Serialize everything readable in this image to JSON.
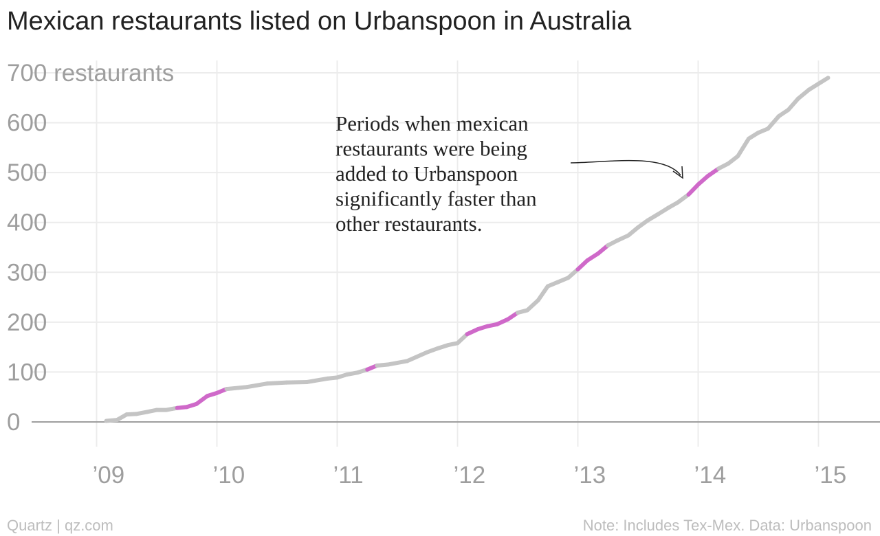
{
  "title": "Mexican restaurants listed on Urbanspoon in Australia",
  "footer": {
    "source_left": "Quartz | qz.com",
    "source_right": "Note: Includes Tex-Mex. Data: Urbanspoon"
  },
  "colors": {
    "line_normal": "#c4c4c4",
    "line_highlight": "#cf69c9",
    "grid": "#ececec",
    "baseline": "#9e9e9e",
    "text": "#222222",
    "tick": "#9e9e9e"
  },
  "chart_data": {
    "type": "line",
    "title": "Mexican restaurants listed on Urbanspoon in Australia",
    "xlabel": "",
    "ylabel": "",
    "y_unit_label": "700 restaurants",
    "xlim": [
      2008.5,
      2015.4
    ],
    "ylim": [
      0,
      700
    ],
    "grid": true,
    "x_ticks": [
      {
        "value": 2009,
        "label": "’09"
      },
      {
        "value": 2010,
        "label": "’10"
      },
      {
        "value": 2011,
        "label": "’11"
      },
      {
        "value": 2012,
        "label": "’12"
      },
      {
        "value": 2013,
        "label": "’13"
      },
      {
        "value": 2014,
        "label": "’14"
      },
      {
        "value": 2015,
        "label": "’15"
      }
    ],
    "y_ticks": [
      {
        "value": 0,
        "label": "0"
      },
      {
        "value": 100,
        "label": "100"
      },
      {
        "value": 200,
        "label": "200"
      },
      {
        "value": 300,
        "label": "300"
      },
      {
        "value": 400,
        "label": "400"
      },
      {
        "value": 500,
        "label": "500"
      },
      {
        "value": 600,
        "label": "600"
      },
      {
        "value": 700,
        "label": "700 restaurants"
      }
    ],
    "series": [
      {
        "points": [
          {
            "x": 2009.08,
            "y": 2,
            "h": false
          },
          {
            "x": 2009.17,
            "y": 4,
            "h": false
          },
          {
            "x": 2009.25,
            "y": 15,
            "h": false
          },
          {
            "x": 2009.33,
            "y": 16,
            "h": false
          },
          {
            "x": 2009.42,
            "y": 20,
            "h": false
          },
          {
            "x": 2009.5,
            "y": 24,
            "h": false
          },
          {
            "x": 2009.58,
            "y": 24,
            "h": false
          },
          {
            "x": 2009.67,
            "y": 28,
            "h": false
          },
          {
            "x": 2009.75,
            "y": 30,
            "h": true
          },
          {
            "x": 2009.83,
            "y": 36,
            "h": true
          },
          {
            "x": 2009.92,
            "y": 52,
            "h": true
          },
          {
            "x": 2010.0,
            "y": 58,
            "h": true
          },
          {
            "x": 2010.08,
            "y": 66,
            "h": true
          },
          {
            "x": 2010.25,
            "y": 70,
            "h": false
          },
          {
            "x": 2010.42,
            "y": 77,
            "h": false
          },
          {
            "x": 2010.58,
            "y": 79,
            "h": false
          },
          {
            "x": 2010.75,
            "y": 80,
            "h": false
          },
          {
            "x": 2010.92,
            "y": 87,
            "h": false
          },
          {
            "x": 2011.0,
            "y": 89,
            "h": false
          },
          {
            "x": 2011.08,
            "y": 95,
            "h": false
          },
          {
            "x": 2011.17,
            "y": 99,
            "h": false
          },
          {
            "x": 2011.25,
            "y": 105,
            "h": false
          },
          {
            "x": 2011.33,
            "y": 113,
            "h": true
          },
          {
            "x": 2011.42,
            "y": 115,
            "h": false
          },
          {
            "x": 2011.58,
            "y": 122,
            "h": false
          },
          {
            "x": 2011.75,
            "y": 140,
            "h": false
          },
          {
            "x": 2011.83,
            "y": 147,
            "h": false
          },
          {
            "x": 2011.92,
            "y": 154,
            "h": false
          },
          {
            "x": 2012.0,
            "y": 158,
            "h": false
          },
          {
            "x": 2012.08,
            "y": 176,
            "h": false
          },
          {
            "x": 2012.17,
            "y": 186,
            "h": true
          },
          {
            "x": 2012.25,
            "y": 192,
            "h": true
          },
          {
            "x": 2012.33,
            "y": 196,
            "h": true
          },
          {
            "x": 2012.42,
            "y": 206,
            "h": true
          },
          {
            "x": 2012.5,
            "y": 219,
            "h": true
          },
          {
            "x": 2012.58,
            "y": 224,
            "h": false
          },
          {
            "x": 2012.67,
            "y": 244,
            "h": false
          },
          {
            "x": 2012.75,
            "y": 272,
            "h": false
          },
          {
            "x": 2012.83,
            "y": 280,
            "h": false
          },
          {
            "x": 2012.92,
            "y": 289,
            "h": false
          },
          {
            "x": 2013.0,
            "y": 306,
            "h": false
          },
          {
            "x": 2013.08,
            "y": 324,
            "h": true
          },
          {
            "x": 2013.17,
            "y": 338,
            "h": true
          },
          {
            "x": 2013.25,
            "y": 354,
            "h": true
          },
          {
            "x": 2013.33,
            "y": 364,
            "h": false
          },
          {
            "x": 2013.42,
            "y": 374,
            "h": false
          },
          {
            "x": 2013.5,
            "y": 390,
            "h": false
          },
          {
            "x": 2013.58,
            "y": 404,
            "h": false
          },
          {
            "x": 2013.67,
            "y": 417,
            "h": false
          },
          {
            "x": 2013.75,
            "y": 429,
            "h": false
          },
          {
            "x": 2013.83,
            "y": 440,
            "h": false
          },
          {
            "x": 2013.92,
            "y": 456,
            "h": false
          },
          {
            "x": 2014.0,
            "y": 476,
            "h": true
          },
          {
            "x": 2014.08,
            "y": 493,
            "h": true
          },
          {
            "x": 2014.17,
            "y": 508,
            "h": true
          },
          {
            "x": 2014.25,
            "y": 518,
            "h": false
          },
          {
            "x": 2014.33,
            "y": 533,
            "h": false
          },
          {
            "x": 2014.42,
            "y": 568,
            "h": false
          },
          {
            "x": 2014.5,
            "y": 580,
            "h": false
          },
          {
            "x": 2014.58,
            "y": 588,
            "h": false
          },
          {
            "x": 2014.67,
            "y": 613,
            "h": false
          },
          {
            "x": 2014.75,
            "y": 626,
            "h": false
          },
          {
            "x": 2014.83,
            "y": 648,
            "h": false
          },
          {
            "x": 2014.92,
            "y": 666,
            "h": false
          },
          {
            "x": 2015.0,
            "y": 678,
            "h": false
          },
          {
            "x": 2015.08,
            "y": 690,
            "h": false
          }
        ]
      }
    ],
    "annotation": {
      "lines": [
        "Periods when mexican",
        "restaurants were being",
        "added to Urbanspoon",
        "significantly faster than",
        "other restaurants."
      ]
    }
  }
}
